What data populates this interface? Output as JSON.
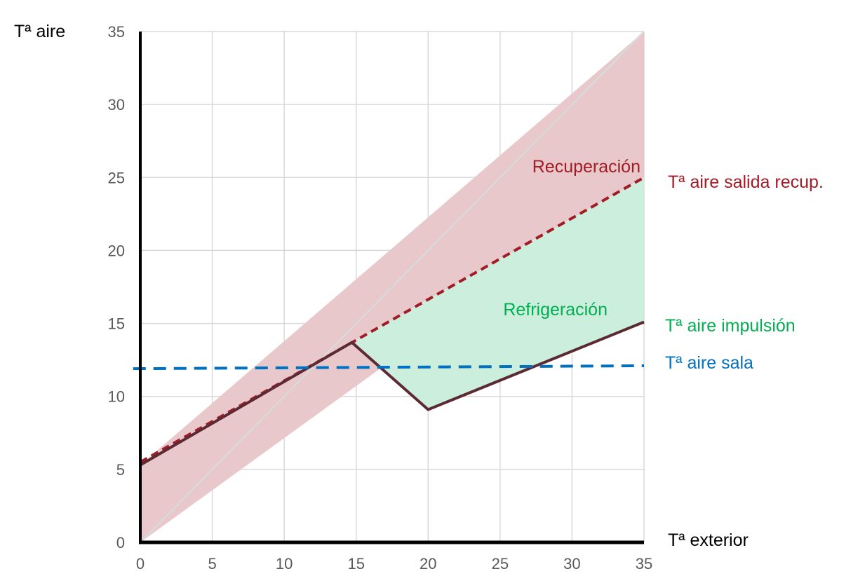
{
  "chart_data": {
    "type": "line",
    "title": "",
    "xlabel": "Tª exterior",
    "ylabel": "Tª aire",
    "xlim": [
      0,
      35
    ],
    "ylim": [
      0,
      35
    ],
    "x_ticks": [
      0,
      5,
      10,
      15,
      20,
      25,
      30,
      35
    ],
    "y_ticks": [
      0,
      5,
      10,
      15,
      20,
      25,
      30,
      35
    ],
    "grid": true,
    "series": [
      {
        "name": "Tª aire salida recup.",
        "style": "dashed",
        "color": "#a21c26",
        "points": [
          [
            0,
            5.5
          ],
          [
            35,
            25
          ]
        ]
      },
      {
        "name": "Tª aire impulsión",
        "style": "solid",
        "color": "#5b2a33",
        "label_color": "#00b050",
        "points": [
          [
            0,
            5.3
          ],
          [
            14.7,
            13.7
          ],
          [
            20,
            9.1
          ],
          [
            35,
            15.1
          ]
        ]
      },
      {
        "name": "Tª aire sala",
        "style": "dashed",
        "color": "#0070c0",
        "points": [
          [
            -0.5,
            11.9
          ],
          [
            35,
            12.1
          ]
        ]
      }
    ],
    "areas": [
      {
        "name": "Recuperación",
        "color": "#e8c8cb",
        "label_color": "#a21c26",
        "upper": [
          [
            0,
            5.3
          ],
          [
            35,
            35
          ]
        ],
        "lower": [
          [
            0,
            0
          ],
          [
            35,
            25
          ]
        ]
      },
      {
        "name": "Refrigeración",
        "color": "#cbeedd",
        "label_color": "#00b050",
        "upper": [
          [
            14.7,
            13.7
          ],
          [
            35,
            25
          ]
        ],
        "lower": [
          [
            14.7,
            13.7
          ],
          [
            20,
            9.1
          ],
          [
            35,
            15.1
          ]
        ]
      }
    ],
    "reference_line": {
      "name": "y = x",
      "color": "#d9d9d9",
      "points": [
        [
          0,
          0
        ],
        [
          35,
          35
        ]
      ]
    }
  }
}
